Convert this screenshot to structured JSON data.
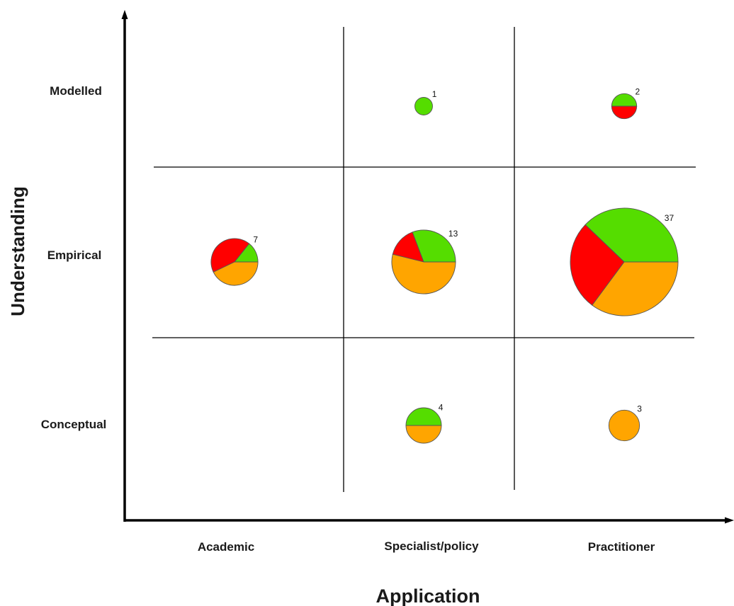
{
  "chart_data": {
    "type": "pie",
    "xlabel": "Application",
    "ylabel": "Understanding",
    "x_categories": [
      "Academic",
      "Specialist/policy",
      "Practitioner"
    ],
    "y_categories": [
      "Modelled",
      "Empirical",
      "Conceptual"
    ],
    "colors": {
      "green": "#55dd00",
      "orange": "#ffa500",
      "red": "#ff0000"
    },
    "cells": [
      {
        "application": "Specialist/policy",
        "understanding": "Modelled",
        "count": "1",
        "slices": [
          {
            "color": "green",
            "value": 1
          }
        ]
      },
      {
        "application": "Practitioner",
        "understanding": "Modelled",
        "count": "2",
        "slices": [
          {
            "color": "green",
            "value": 1
          },
          {
            "color": "red",
            "value": 1
          }
        ]
      },
      {
        "application": "Academic",
        "understanding": "Empirical",
        "count": "7",
        "slices": [
          {
            "color": "green",
            "value": 1
          },
          {
            "color": "red",
            "value": 3
          },
          {
            "color": "orange",
            "value": 3
          }
        ]
      },
      {
        "application": "Specialist/policy",
        "understanding": "Empirical",
        "count": "13",
        "slices": [
          {
            "color": "green",
            "value": 4
          },
          {
            "color": "red",
            "value": 2
          },
          {
            "color": "orange",
            "value": 7
          }
        ]
      },
      {
        "application": "Practitioner",
        "understanding": "Empirical",
        "count": "37",
        "slices": [
          {
            "color": "green",
            "value": 14
          },
          {
            "color": "red",
            "value": 10
          },
          {
            "color": "orange",
            "value": 13
          }
        ]
      },
      {
        "application": "Specialist/policy",
        "understanding": "Conceptual",
        "count": "4",
        "slices": [
          {
            "color": "green",
            "value": 2
          },
          {
            "color": "orange",
            "value": 2
          }
        ]
      },
      {
        "application": "Practitioner",
        "understanding": "Conceptual",
        "count": "3",
        "slices": [
          {
            "color": "orange",
            "value": 3
          }
        ]
      }
    ]
  }
}
